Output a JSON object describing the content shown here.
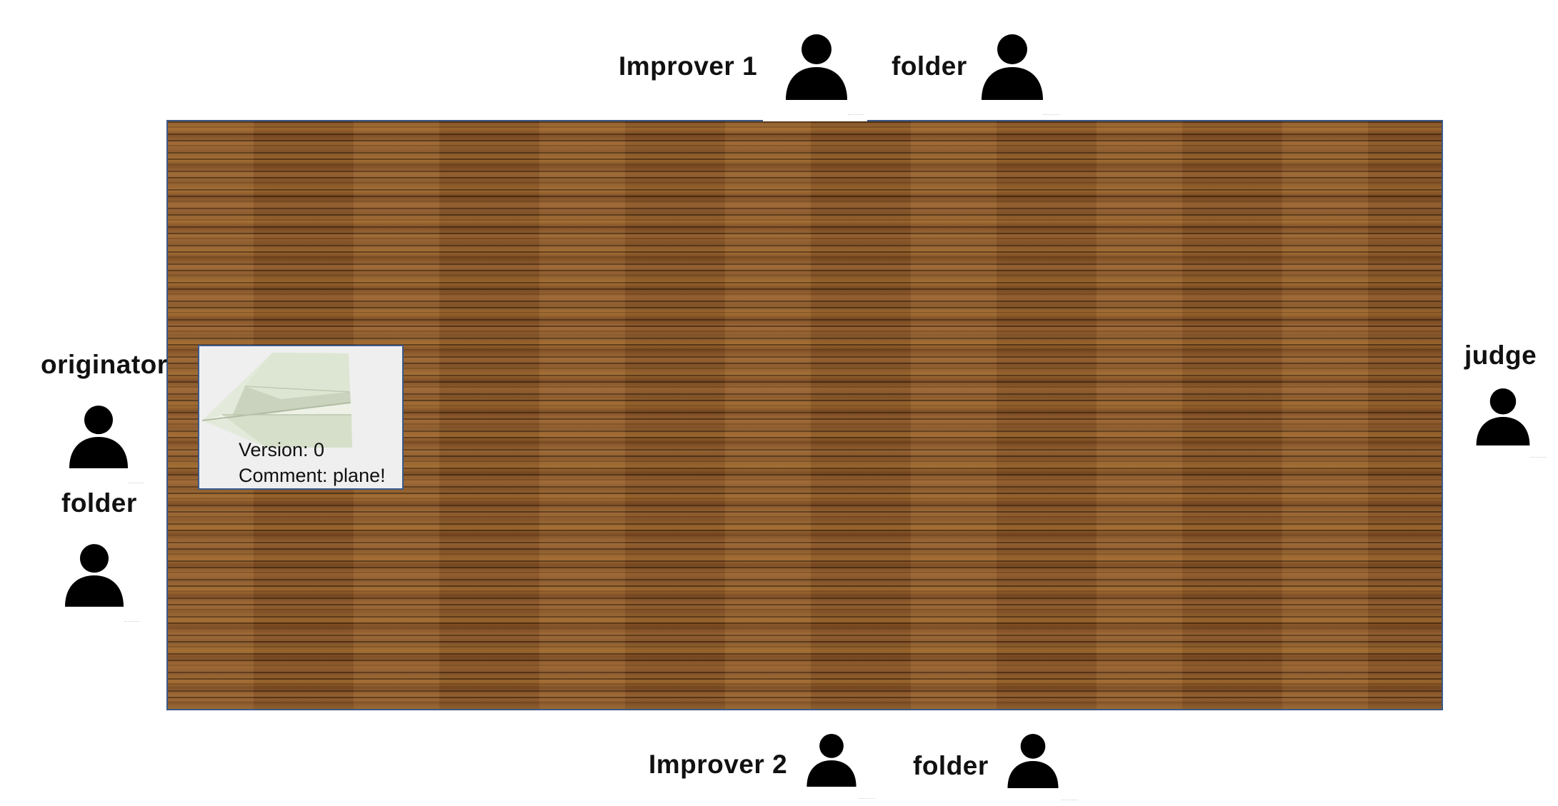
{
  "roles": {
    "improver1": "Improver 1",
    "folder_top": "folder",
    "originator": "originator",
    "folder_left": "folder",
    "judge": "judge",
    "improver2": "Improver 2",
    "folder_bottom": "folder"
  },
  "card": {
    "version_line": "Version: 0",
    "comment_line": "Comment: plane!"
  },
  "icons": {
    "person": "person-icon",
    "plane": "paper-plane-image"
  },
  "colors": {
    "table_border": "#3b5a8a",
    "wood": "#8d5c2c",
    "icon": "#000000"
  }
}
